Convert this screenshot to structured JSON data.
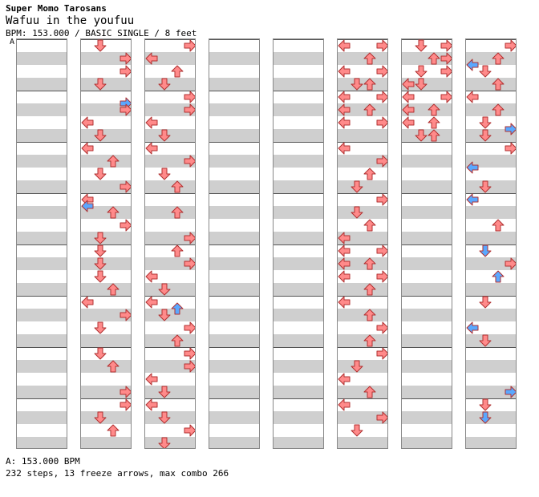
{
  "header": {
    "artist": "Super Momo Tarosans",
    "title": "Wafuu in the youfuu",
    "meta": "BPM: 153.000 / BASIC SINGLE / 8 feet",
    "bpm_marker": "A"
  },
  "footer": {
    "bpm_legend": "A: 153.000 BPM",
    "summary": "232 steps, 13 freeze arrows, max combo 266"
  },
  "colors": {
    "quarter": "#ff8a8a",
    "eighth": "#5aa8ff",
    "sixteenth": "#ffd040",
    "freeze_body": "#b8f0b8",
    "freeze_border": "#3aa03a",
    "band": "#cfcfcf"
  },
  "chart_data": {
    "type": "step-chart",
    "columns": 8,
    "measures_per_column": 8,
    "lanes": [
      "left",
      "down",
      "up",
      "right"
    ],
    "notes": [
      {
        "col": 1,
        "m": 0,
        "beat": 0,
        "lane": "down",
        "q": "4"
      },
      {
        "col": 1,
        "m": 0,
        "beat": 1,
        "lane": "right",
        "q": "4"
      },
      {
        "col": 1,
        "m": 0,
        "beat": 2,
        "lane": "right",
        "q": "4"
      },
      {
        "col": 1,
        "m": 0,
        "beat": 3,
        "lane": "down",
        "q": "4"
      },
      {
        "col": 1,
        "m": 1,
        "beat": 0.5,
        "lane": "right",
        "q": "8"
      },
      {
        "col": 1,
        "m": 1,
        "beat": 1,
        "lane": "right",
        "q": "4"
      },
      {
        "col": 1,
        "m": 1,
        "beat": 2,
        "lane": "left",
        "q": "4"
      },
      {
        "col": 1,
        "m": 1,
        "beat": 3,
        "lane": "down",
        "q": "4"
      },
      {
        "col": 1,
        "m": 2,
        "beat": 0,
        "lane": "left",
        "q": "4"
      },
      {
        "col": 1,
        "m": 2,
        "beat": 1,
        "lane": "up",
        "q": "4"
      },
      {
        "col": 1,
        "m": 2,
        "beat": 2,
        "lane": "down",
        "q": "4"
      },
      {
        "col": 1,
        "m": 2,
        "beat": 3,
        "lane": "right",
        "q": "4"
      },
      {
        "col": 1,
        "m": 3,
        "beat": 0,
        "lane": "left",
        "q": "4"
      },
      {
        "col": 1,
        "m": 3,
        "beat": 0.5,
        "lane": "left",
        "q": "8"
      },
      {
        "col": 1,
        "m": 3,
        "beat": 1,
        "lane": "up",
        "q": "4"
      },
      {
        "col": 1,
        "m": 3,
        "beat": 2,
        "lane": "right",
        "q": "4"
      },
      {
        "col": 1,
        "m": 3,
        "beat": 3,
        "lane": "down",
        "q": "4"
      },
      {
        "col": 1,
        "m": 4,
        "beat": 0,
        "lane": "down",
        "q": "4"
      },
      {
        "col": 1,
        "m": 4,
        "beat": 1,
        "lane": "down",
        "q": "4"
      },
      {
        "col": 1,
        "m": 4,
        "beat": 2,
        "lane": "down",
        "q": "4"
      },
      {
        "col": 1,
        "m": 4,
        "beat": 3,
        "lane": "up",
        "q": "4"
      },
      {
        "col": 1,
        "m": 5,
        "beat": 0,
        "lane": "left",
        "q": "4"
      },
      {
        "col": 1,
        "m": 5,
        "beat": 1,
        "lane": "right",
        "q": "4"
      },
      {
        "col": 1,
        "m": 5,
        "beat": 2,
        "lane": "down",
        "q": "4"
      },
      {
        "col": 1,
        "m": 6,
        "beat": 0,
        "lane": "down",
        "q": "4"
      },
      {
        "col": 1,
        "m": 6,
        "beat": 1,
        "lane": "up",
        "q": "4"
      },
      {
        "col": 1,
        "m": 6,
        "beat": 3,
        "lane": "right",
        "q": "4"
      },
      {
        "col": 1,
        "m": 7,
        "beat": 0,
        "lane": "right",
        "q": "4"
      },
      {
        "col": 1,
        "m": 7,
        "beat": 1,
        "lane": "down",
        "q": "4"
      },
      {
        "col": 1,
        "m": 7,
        "beat": 2,
        "lane": "up",
        "q": "4"
      },
      {
        "col": 2,
        "m": 0,
        "beat": 0,
        "lane": "right",
        "q": "4"
      },
      {
        "col": 2,
        "m": 0,
        "beat": 1,
        "lane": "left",
        "q": "4"
      },
      {
        "col": 2,
        "m": 0,
        "beat": 2,
        "lane": "up",
        "q": "4"
      },
      {
        "col": 2,
        "m": 0,
        "beat": 3,
        "lane": "down",
        "q": "4"
      },
      {
        "col": 2,
        "m": 1,
        "beat": 0,
        "lane": "right",
        "q": "4"
      },
      {
        "col": 2,
        "m": 1,
        "beat": 1,
        "lane": "right",
        "q": "4"
      },
      {
        "col": 2,
        "m": 1,
        "beat": 2,
        "lane": "left",
        "q": "4"
      },
      {
        "col": 2,
        "m": 1,
        "beat": 3,
        "lane": "down",
        "q": "4"
      },
      {
        "col": 2,
        "m": 2,
        "beat": 0,
        "lane": "left",
        "q": "4"
      },
      {
        "col": 2,
        "m": 2,
        "beat": 1,
        "lane": "right",
        "q": "4"
      },
      {
        "col": 2,
        "m": 2,
        "beat": 2,
        "lane": "down",
        "q": "4"
      },
      {
        "col": 2,
        "m": 2,
        "beat": 3,
        "lane": "up",
        "q": "4"
      },
      {
        "col": 2,
        "m": 3,
        "beat": 1,
        "lane": "up",
        "q": "4"
      },
      {
        "col": 2,
        "m": 3,
        "beat": 3,
        "lane": "right",
        "q": "4"
      },
      {
        "col": 2,
        "m": 4,
        "beat": 0,
        "lane": "up",
        "q": "4"
      },
      {
        "col": 2,
        "m": 4,
        "beat": 1,
        "lane": "right",
        "q": "4"
      },
      {
        "col": 2,
        "m": 4,
        "beat": 2,
        "lane": "left",
        "q": "4"
      },
      {
        "col": 2,
        "m": 4,
        "beat": 3,
        "lane": "down",
        "q": "4"
      },
      {
        "col": 2,
        "m": 5,
        "beat": 0,
        "lane": "left",
        "q": "4"
      },
      {
        "col": 2,
        "m": 5,
        "beat": 0.5,
        "lane": "up",
        "q": "8"
      },
      {
        "col": 2,
        "m": 5,
        "beat": 1,
        "lane": "down",
        "q": "4"
      },
      {
        "col": 2,
        "m": 5,
        "beat": 2,
        "lane": "right",
        "q": "4"
      },
      {
        "col": 2,
        "m": 5,
        "beat": 3,
        "lane": "up",
        "q": "4"
      },
      {
        "col": 2,
        "m": 6,
        "beat": 0,
        "lane": "right",
        "q": "4"
      },
      {
        "col": 2,
        "m": 6,
        "beat": 1,
        "lane": "right",
        "q": "4"
      },
      {
        "col": 2,
        "m": 6,
        "beat": 2,
        "lane": "left",
        "q": "4"
      },
      {
        "col": 2,
        "m": 6,
        "beat": 3,
        "lane": "down",
        "q": "4"
      },
      {
        "col": 2,
        "m": 7,
        "beat": 0,
        "lane": "left",
        "q": "4"
      },
      {
        "col": 2,
        "m": 7,
        "beat": 1,
        "lane": "down",
        "q": "4"
      },
      {
        "col": 2,
        "m": 7,
        "beat": 2,
        "lane": "right",
        "q": "4"
      },
      {
        "col": 2,
        "m": 7,
        "beat": 3,
        "lane": "down",
        "q": "4"
      },
      {
        "col": 5,
        "m": 0,
        "beat": 0,
        "lane": "left",
        "q": "4"
      },
      {
        "col": 5,
        "m": 0,
        "beat": 0,
        "lane": "right",
        "q": "4"
      },
      {
        "col": 5,
        "m": 0,
        "beat": 1,
        "lane": "up",
        "q": "4"
      },
      {
        "col": 5,
        "m": 0,
        "beat": 2,
        "lane": "left",
        "q": "4"
      },
      {
        "col": 5,
        "m": 0,
        "beat": 2,
        "lane": "right",
        "q": "4"
      },
      {
        "col": 5,
        "m": 0,
        "beat": 3,
        "lane": "down",
        "q": "4"
      },
      {
        "col": 5,
        "m": 0,
        "beat": 3,
        "lane": "up",
        "q": "4"
      },
      {
        "col": 5,
        "m": 1,
        "beat": 0,
        "lane": "left",
        "q": "4"
      },
      {
        "col": 5,
        "m": 1,
        "beat": 0,
        "lane": "right",
        "q": "4"
      },
      {
        "col": 5,
        "m": 1,
        "beat": 1,
        "lane": "left",
        "q": "4"
      },
      {
        "col": 5,
        "m": 1,
        "beat": 1,
        "lane": "up",
        "q": "4"
      },
      {
        "col": 5,
        "m": 1,
        "beat": 2,
        "lane": "left",
        "q": "4"
      },
      {
        "col": 5,
        "m": 1,
        "beat": 2,
        "lane": "right",
        "q": "4"
      },
      {
        "col": 5,
        "m": 2,
        "beat": 0,
        "lane": "left",
        "q": "4"
      },
      {
        "col": 5,
        "m": 2,
        "beat": 1,
        "lane": "right",
        "q": "4"
      },
      {
        "col": 5,
        "m": 2,
        "beat": 2,
        "lane": "up",
        "q": "4"
      },
      {
        "col": 5,
        "m": 2,
        "beat": 3,
        "lane": "down",
        "q": "4"
      },
      {
        "col": 5,
        "m": 3,
        "beat": 0,
        "lane": "right",
        "q": "4"
      },
      {
        "col": 5,
        "m": 3,
        "beat": 1,
        "lane": "down",
        "q": "4"
      },
      {
        "col": 5,
        "m": 3,
        "beat": 2,
        "lane": "up",
        "q": "4"
      },
      {
        "col": 5,
        "m": 3,
        "beat": 3,
        "lane": "left",
        "q": "4"
      },
      {
        "col": 5,
        "m": 4,
        "beat": 0,
        "lane": "left",
        "q": "4"
      },
      {
        "col": 5,
        "m": 4,
        "beat": 0,
        "lane": "right",
        "q": "4"
      },
      {
        "col": 5,
        "m": 4,
        "beat": 1,
        "lane": "left",
        "q": "4"
      },
      {
        "col": 5,
        "m": 4,
        "beat": 1,
        "lane": "up",
        "q": "4"
      },
      {
        "col": 5,
        "m": 4,
        "beat": 2,
        "lane": "left",
        "q": "4"
      },
      {
        "col": 5,
        "m": 4,
        "beat": 2,
        "lane": "right",
        "q": "4"
      },
      {
        "col": 5,
        "m": 4,
        "beat": 3,
        "lane": "up",
        "q": "4"
      },
      {
        "col": 5,
        "m": 5,
        "beat": 0,
        "lane": "left",
        "q": "4"
      },
      {
        "col": 5,
        "m": 5,
        "beat": 1,
        "lane": "up",
        "q": "4"
      },
      {
        "col": 5,
        "m": 5,
        "beat": 2,
        "lane": "right",
        "q": "4"
      },
      {
        "col": 5,
        "m": 5,
        "beat": 3,
        "lane": "up",
        "q": "4"
      },
      {
        "col": 5,
        "m": 6,
        "beat": 0,
        "lane": "right",
        "q": "4"
      },
      {
        "col": 5,
        "m": 6,
        "beat": 1,
        "lane": "down",
        "q": "4"
      },
      {
        "col": 5,
        "m": 6,
        "beat": 2,
        "lane": "left",
        "q": "4"
      },
      {
        "col": 5,
        "m": 6,
        "beat": 3,
        "lane": "up",
        "q": "4"
      },
      {
        "col": 5,
        "m": 7,
        "beat": 0,
        "lane": "left",
        "q": "4"
      },
      {
        "col": 5,
        "m": 7,
        "beat": 1,
        "lane": "right",
        "q": "4"
      },
      {
        "col": 5,
        "m": 7,
        "beat": 2,
        "lane": "down",
        "q": "4"
      },
      {
        "col": 6,
        "m": 0,
        "beat": 0,
        "lane": "down",
        "q": "4"
      },
      {
        "col": 6,
        "m": 0,
        "beat": 0,
        "lane": "right",
        "q": "4"
      },
      {
        "col": 6,
        "m": 0,
        "beat": 1,
        "lane": "up",
        "q": "4"
      },
      {
        "col": 6,
        "m": 0,
        "beat": 1,
        "lane": "right",
        "q": "4"
      },
      {
        "col": 6,
        "m": 0,
        "beat": 2,
        "lane": "down",
        "q": "4"
      },
      {
        "col": 6,
        "m": 0,
        "beat": 2,
        "lane": "right",
        "q": "4"
      },
      {
        "col": 6,
        "m": 0,
        "beat": 3,
        "lane": "left",
        "q": "4"
      },
      {
        "col": 6,
        "m": 0,
        "beat": 3,
        "lane": "down",
        "q": "4"
      },
      {
        "col": 6,
        "m": 1,
        "beat": 0,
        "lane": "left",
        "q": "4"
      },
      {
        "col": 6,
        "m": 1,
        "beat": 0,
        "lane": "right",
        "q": "4"
      },
      {
        "col": 6,
        "m": 1,
        "beat": 1,
        "lane": "left",
        "q": "4"
      },
      {
        "col": 6,
        "m": 1,
        "beat": 1,
        "lane": "up",
        "q": "4"
      },
      {
        "col": 6,
        "m": 1,
        "beat": 2,
        "lane": "left",
        "q": "4"
      },
      {
        "col": 6,
        "m": 1,
        "beat": 2,
        "lane": "up",
        "q": "4"
      },
      {
        "col": 6,
        "m": 1,
        "beat": 3,
        "lane": "down",
        "q": "4"
      },
      {
        "col": 6,
        "m": 1,
        "beat": 3,
        "lane": "up",
        "q": "4"
      },
      {
        "col": 7,
        "m": 0,
        "beat": 0,
        "lane": "right",
        "q": "4"
      },
      {
        "col": 7,
        "m": 0,
        "beat": 1,
        "lane": "up",
        "q": "4"
      },
      {
        "col": 7,
        "m": 0,
        "beat": 1.5,
        "lane": "left",
        "q": "8"
      },
      {
        "col": 7,
        "m": 0,
        "beat": 2,
        "lane": "down",
        "q": "4"
      },
      {
        "col": 7,
        "m": 0,
        "beat": 3,
        "lane": "up",
        "q": "4"
      },
      {
        "col": 7,
        "m": 1,
        "beat": 0,
        "lane": "left",
        "q": "4"
      },
      {
        "col": 7,
        "m": 1,
        "beat": 1,
        "lane": "up",
        "q": "4"
      },
      {
        "col": 7,
        "m": 1,
        "beat": 2,
        "lane": "down",
        "q": "4"
      },
      {
        "col": 7,
        "m": 1,
        "beat": 2.5,
        "lane": "right",
        "q": "8"
      },
      {
        "col": 7,
        "m": 1,
        "beat": 3,
        "lane": "down",
        "q": "4"
      },
      {
        "col": 7,
        "m": 2,
        "beat": 0,
        "lane": "right",
        "q": "4"
      },
      {
        "col": 7,
        "m": 2,
        "beat": 1.5,
        "lane": "left",
        "q": "8"
      },
      {
        "col": 7,
        "m": 2,
        "beat": 3,
        "lane": "down",
        "q": "4"
      },
      {
        "col": 7,
        "m": 3,
        "beat": 0,
        "lane": "left",
        "q": "8"
      },
      {
        "col": 7,
        "m": 3,
        "beat": 2,
        "lane": "up",
        "q": "4"
      },
      {
        "col": 7,
        "m": 4,
        "beat": 0,
        "lane": "down",
        "q": "8"
      },
      {
        "col": 7,
        "m": 4,
        "beat": 1,
        "lane": "right",
        "q": "4"
      },
      {
        "col": 7,
        "m": 4,
        "beat": 2,
        "lane": "up",
        "q": "8"
      },
      {
        "col": 7,
        "m": 5,
        "beat": 0,
        "lane": "down",
        "q": "4"
      },
      {
        "col": 7,
        "m": 5,
        "beat": 2,
        "lane": "left",
        "q": "8"
      },
      {
        "col": 7,
        "m": 5,
        "beat": 3,
        "lane": "down",
        "q": "4"
      },
      {
        "col": 7,
        "m": 6,
        "beat": 3,
        "lane": "right",
        "q": "8"
      },
      {
        "col": 7,
        "m": 7,
        "beat": 0,
        "lane": "down",
        "q": "4"
      },
      {
        "col": 7,
        "m": 7,
        "beat": 1,
        "lane": "down",
        "q": "8"
      }
    ],
    "freezes": [
      {
        "col": 7,
        "m": 0,
        "beat": 0,
        "lane": "down",
        "len_beats": 2,
        "_": "placeholder"
      }
    ]
  }
}
